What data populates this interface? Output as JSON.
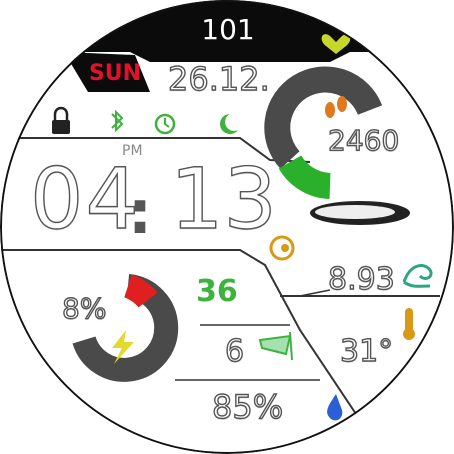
{
  "header": {
    "step_count": "101",
    "day": "SUN",
    "date": "26.12.",
    "heart_color": "#c7d62a"
  },
  "status_icons": [
    "lock-icon",
    "bluetooth-icon",
    "alarm-icon",
    "moon-icon"
  ],
  "status_colors": {
    "lock": "#222222",
    "green": "#3db33d"
  },
  "time": {
    "ampm": "PM",
    "hours": "04",
    "minutes": "13"
  },
  "steps_gauge": {
    "steps": "2460",
    "level_fraction": 0.3,
    "active_color": "#2bb02b",
    "inactive_color": "#4a4a4a"
  },
  "weather": {
    "icon": "cloud-icon",
    "tide_value": "8.93",
    "temperature": "31°",
    "humidity": "85%",
    "wind": "6",
    "uv": "36"
  },
  "battery": {
    "percent": "8%",
    "level_fraction": 0.08,
    "low_color": "#e02020",
    "bolt_color": "#e3d92b"
  }
}
